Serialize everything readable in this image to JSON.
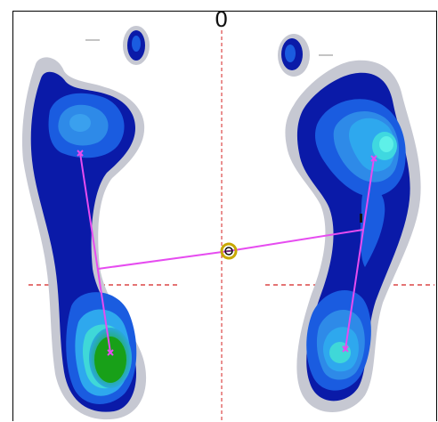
{
  "viewer": {
    "axis_label": "0",
    "colors": {
      "background": "#ffffff",
      "outline_gray": "#c6c8d2",
      "pressure_low": "#0a1aa8",
      "pressure_mid": "#1a5ce0",
      "pressure_high": "#2ea8ee",
      "pressure_peak": "#3fe0e8",
      "pressure_heel_peak": "#1aa01a",
      "axis_line": "#d42020",
      "alignment_line": "#e64cf0",
      "center_marker": "#c8a800"
    },
    "icons": {
      "center": "center-of-pressure-icon",
      "endpoints": "x-marker-icon"
    }
  }
}
